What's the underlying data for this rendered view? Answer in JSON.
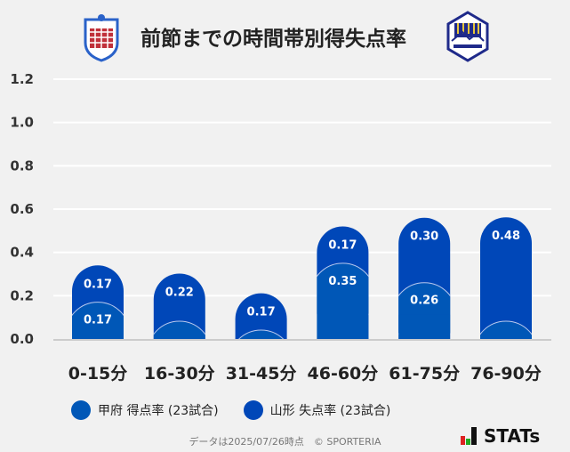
{
  "title": "前節までの時間帯別得失点率",
  "chart_data": {
    "type": "bar",
    "categories": [
      "0-15分",
      "16-30分",
      "31-45分",
      "46-60分",
      "61-75分",
      "76-90分"
    ],
    "series": [
      {
        "name": "甲府 得点率 (23試合)",
        "values": [
          0.17,
          0,
          0,
          0.35,
          0.26,
          0
        ],
        "color": "#0057b7"
      },
      {
        "name": "山形 失点率 (23試合)",
        "values": [
          0.17,
          0.22,
          0.17,
          0.17,
          0.3,
          0.48
        ],
        "color": "#0047b8"
      }
    ],
    "data_labels": [
      [
        "0.17",
        "",
        "",
        "0.35",
        "0.26",
        ""
      ],
      [
        "0.17",
        "0.22",
        "0.17",
        "0.17",
        "0.30",
        "0.48"
      ]
    ],
    "ylim": [
      0,
      1.2
    ],
    "yticks": [
      "0.0",
      "0.2",
      "0.4",
      "0.6",
      "0.8",
      "1.0",
      "1.2"
    ],
    "grid": true,
    "stacked": true,
    "legend_position": "bottom-left"
  },
  "footer": "データは2025/07/26時点　© SPORTERIA",
  "brand": "STATs",
  "logos": {
    "left": "VFK",
    "right": "Montedio"
  }
}
